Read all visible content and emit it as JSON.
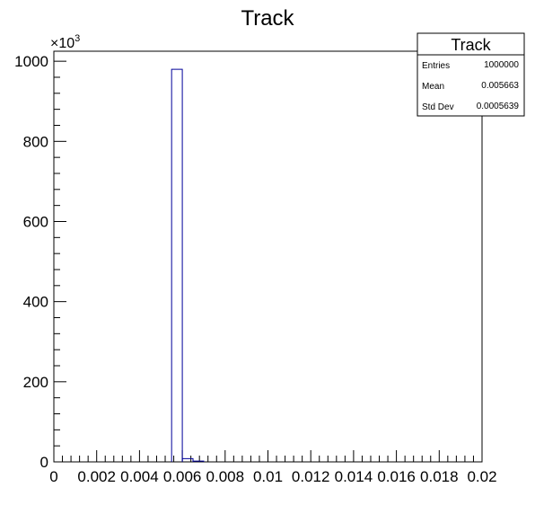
{
  "chart_data": {
    "type": "bar",
    "title": "Track",
    "xlabel": "",
    "ylabel": "",
    "xlim": [
      0,
      0.02
    ],
    "ylim": [
      0,
      1025
    ],
    "y_multiplier_label": "×10",
    "y_multiplier_exponent": "3",
    "bin_width": 0.0005,
    "bins": [
      {
        "low": 0.0055,
        "high": 0.006,
        "value": 980
      },
      {
        "low": 0.006,
        "high": 0.0065,
        "value": 8
      },
      {
        "low": 0.0065,
        "high": 0.007,
        "value": 2
      }
    ],
    "x_ticks": [
      0,
      0.002,
      0.004,
      0.006,
      0.008,
      0.01,
      0.012,
      0.014,
      0.016,
      0.018,
      0.02
    ],
    "x_tick_labels": [
      "0",
      "0.002",
      "0.004",
      "0.006",
      "0.008",
      "0.01",
      "0.012",
      "0.014",
      "0.016",
      "0.018",
      "0.02"
    ],
    "y_ticks": [
      0,
      200,
      400,
      600,
      800,
      1000
    ],
    "y_tick_labels": [
      "0",
      "200",
      "400",
      "600",
      "800",
      "1000"
    ],
    "line_color": "#000099",
    "grid": false,
    "legend_position": "top-right",
    "stats": {
      "title": "Track",
      "rows": [
        {
          "label": "Entries",
          "value": "1000000"
        },
        {
          "label": "Mean",
          "value": "0.005663"
        },
        {
          "label": "Std Dev",
          "value": "0.0005639"
        }
      ]
    }
  }
}
